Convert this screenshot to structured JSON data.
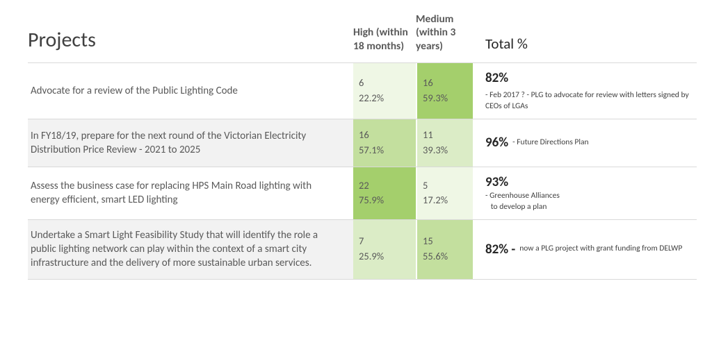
{
  "headers": {
    "projects": "Projects",
    "high": "High (within 18 months)",
    "medium": "Medium (within 3 years)",
    "total": "Total %"
  },
  "colors": {
    "shade_light": "#eff7e5",
    "shade_mid": "#dbecc6",
    "shade_strong": "#c3df9e",
    "shade_bold": "#a4cf6c",
    "row_alt_bg": "#f2f2f2",
    "border": "#d9d9d9"
  },
  "rows": [
    {
      "project": "Advocate for a review of the Public Lighting Code",
      "high": {
        "count": "6",
        "pct": "22.2%",
        "shade": "shade_light"
      },
      "medium": {
        "count": "16",
        "pct": "59.3%",
        "shade": "shade_bold"
      },
      "total_pct": "82%",
      "note": "- Feb 2017 ?  - PLG to advocate for review with letters signed by CEOs of LGAs",
      "note_layout": "inline",
      "alt": false
    },
    {
      "project": "In FY18/19, prepare for the next round of the Victorian Electricity Distribution Price Review - 2021 to 2025",
      "high": {
        "count": "16",
        "pct": "57.1%",
        "shade": "shade_strong"
      },
      "medium": {
        "count": "11",
        "pct": "39.3%",
        "shade": "shade_mid"
      },
      "total_pct": "96%",
      "note": "-  Future Directions Plan",
      "note_layout": "inline",
      "alt": true
    },
    {
      "project": "Assess the business case for replacing HPS Main Road lighting with energy efficient,  smart LED lighting",
      "high": {
        "count": "22",
        "pct": "75.9%",
        "shade": "shade_bold"
      },
      "medium": {
        "count": "5",
        "pct": "17.2%",
        "shade": "shade_light"
      },
      "total_pct": "93%",
      "note": "- Greenhouse Alliances\n   to develop a plan",
      "note_layout": "block",
      "alt": false
    },
    {
      "project": "Undertake a Smart Light Feasibility Study that will identify the role a public lighting network can play within the context of a smart city infrastructure and the delivery of more sustainable urban services.",
      "high": {
        "count": "7",
        "pct": "25.9%",
        "shade": "shade_mid"
      },
      "medium": {
        "count": "15",
        "pct": "55.6%",
        "shade": "shade_strong"
      },
      "total_pct": "82% -",
      "note": "now a PLG project  with grant funding from DELWP",
      "note_layout": "inline",
      "alt": true
    }
  ]
}
